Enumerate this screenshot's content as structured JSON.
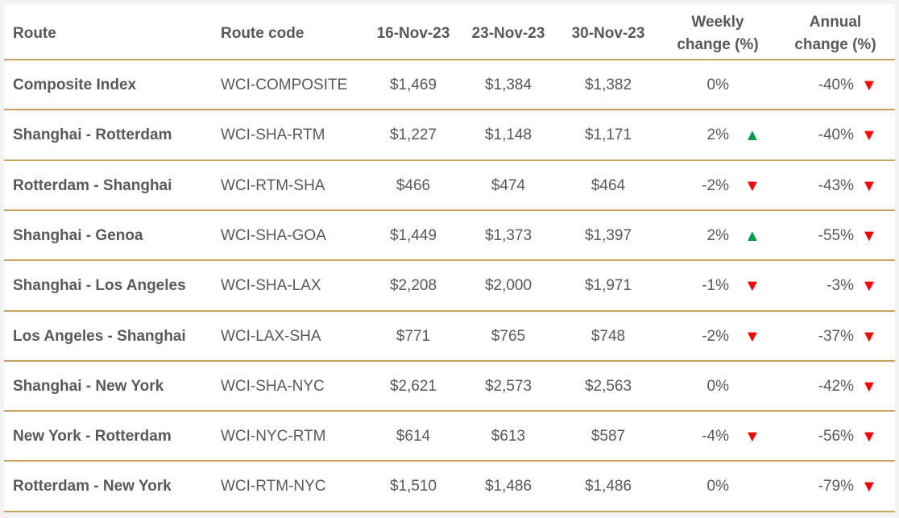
{
  "table": {
    "headers": [
      "Route",
      "Route code",
      "16-Nov-23",
      "23-Nov-23",
      "30-Nov-23",
      "Weekly change (%)",
      "Annual change (%)"
    ],
    "rows": [
      {
        "route": "Composite Index",
        "code": "WCI-COMPOSITE",
        "values": [
          "$1,469",
          "$1,384",
          "$1,382"
        ],
        "weekly": "0%",
        "weekly_arrow": null,
        "annual": "-40%",
        "annual_arrow": {
          "symbol": "▼",
          "color": "#ff0000"
        }
      },
      {
        "route": "Shanghai - Rotterdam",
        "code": "WCI-SHA-RTM",
        "values": [
          "$1,227",
          "$1,148",
          "$1,171"
        ],
        "weekly": "2%",
        "weekly_arrow": {
          "symbol": "▲",
          "color": "#00a04a"
        },
        "annual": "-40%",
        "annual_arrow": {
          "symbol": "▼",
          "color": "#ff0000"
        }
      },
      {
        "route": "Rotterdam - Shanghai",
        "code": "WCI-RTM-SHA",
        "values": [
          "$466",
          "$474",
          "$464"
        ],
        "weekly": "-2%",
        "weekly_arrow": {
          "symbol": "▼",
          "color": "#ff0000"
        },
        "annual": "-43%",
        "annual_arrow": {
          "symbol": "▼",
          "color": "#ff0000"
        }
      },
      {
        "route": "Shanghai - Genoa",
        "code": "WCI-SHA-GOA",
        "values": [
          "$1,449",
          "$1,373",
          "$1,397"
        ],
        "weekly": "2%",
        "weekly_arrow": {
          "symbol": "▲",
          "color": "#00a04a"
        },
        "annual": "-55%",
        "annual_arrow": {
          "symbol": "▼",
          "color": "#ff0000"
        }
      },
      {
        "route": "Shanghai - Los Angeles",
        "code": "WCI-SHA-LAX",
        "values": [
          "$2,208",
          "$2,000",
          "$1,971"
        ],
        "weekly": "-1%",
        "weekly_arrow": {
          "symbol": "▼",
          "color": "#ff0000"
        },
        "annual": "-3%",
        "annual_arrow": {
          "symbol": "▼",
          "color": "#ff0000"
        }
      },
      {
        "route": "Los Angeles - Shanghai",
        "code": "WCI-LAX-SHA",
        "values": [
          "$771",
          "$765",
          "$748"
        ],
        "weekly": "-2%",
        "weekly_arrow": {
          "symbol": "▼",
          "color": "#ff0000"
        },
        "annual": "-37%",
        "annual_arrow": {
          "symbol": "▼",
          "color": "#ff0000"
        }
      },
      {
        "route": "Shanghai - New York",
        "code": "WCI-SHA-NYC",
        "values": [
          "$2,621",
          "$2,573",
          "$2,563"
        ],
        "weekly": "0%",
        "weekly_arrow": null,
        "annual": "-42%",
        "annual_arrow": {
          "symbol": "▼",
          "color": "#ff0000"
        }
      },
      {
        "route": "New York - Rotterdam",
        "code": "WCI-NYC-RTM",
        "values": [
          "$614",
          "$613",
          "$587"
        ],
        "weekly": "-4%",
        "weekly_arrow": {
          "symbol": "▼",
          "color": "#ff0000"
        },
        "annual": "-56%",
        "annual_arrow": {
          "symbol": "▼",
          "color": "#ff0000"
        }
      },
      {
        "route": "Rotterdam - New York",
        "code": "WCI-RTM-NYC",
        "values": [
          "$1,510",
          "$1,486",
          "$1,486"
        ],
        "weekly": "0%",
        "weekly_arrow": null,
        "annual": "-79%",
        "annual_arrow": {
          "symbol": "▼",
          "color": "#ff0000"
        }
      }
    ]
  }
}
